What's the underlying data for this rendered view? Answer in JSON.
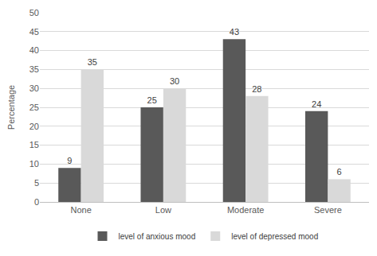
{
  "chart_data": {
    "type": "bar",
    "y_label": "Percentage",
    "categories": [
      "None",
      "Low",
      "Moderate",
      "Severe"
    ],
    "series": [
      {
        "name": "level of anxious mood",
        "color": "#595959",
        "values": [
          9,
          25,
          43,
          24
        ]
      },
      {
        "name": "level of depressed mood",
        "color": "#d9d9d9",
        "values": [
          35,
          30,
          28,
          6
        ]
      }
    ],
    "ylim": [
      0,
      50
    ],
    "yticks": [
      0,
      5,
      10,
      15,
      20,
      25,
      30,
      35,
      40,
      45,
      50
    ],
    "grid": true,
    "legend": "bottom",
    "data_labels": true
  }
}
